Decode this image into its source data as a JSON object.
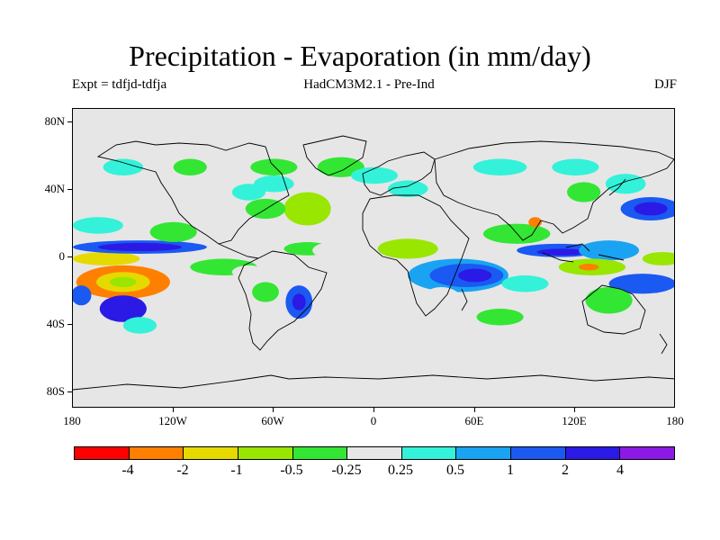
{
  "title": "Precipitation - Evaporation (in mm/day)",
  "subtitle_left": "Expt = tdfjd-tdfja",
  "subtitle_center": "HadCM3M2.1 - Pre-Ind",
  "subtitle_right": "DJF",
  "map": {
    "projection": "equirectangular",
    "lon_range": [
      -180,
      180
    ],
    "lat_range": [
      -90,
      90
    ],
    "background": "#e6e6e6",
    "y_ticks": [
      "80N",
      "40N",
      "0",
      "40S",
      "80S"
    ],
    "x_ticks": [
      "180",
      "120W",
      "60W",
      "0",
      "60E",
      "120E",
      "180"
    ]
  },
  "colorbar": {
    "colors": [
      "#ff0000",
      "#ff7f00",
      "#e6d900",
      "#99e600",
      "#33e633",
      "#e6e6e6",
      "#33f2d9",
      "#1aa3f2",
      "#1a59f2",
      "#2b1ae6",
      "#8c1ae6"
    ],
    "labels": [
      "-4",
      "-2",
      "-1",
      "-0.5",
      "-0.25",
      "0.25",
      "0.5",
      "1",
      "2",
      "4"
    ]
  },
  "chart_data": {
    "type": "heatmap",
    "title": "Precipitation - Evaporation (in mm/day)",
    "variable": "P-E difference",
    "units": "mm/day",
    "season": "DJF",
    "experiment": "tdfjd-tdfja",
    "model": "HadCM3M2.1 - Pre-Ind",
    "levels": [
      -4,
      -2,
      -1,
      -0.5,
      -0.25,
      0.25,
      0.5,
      1,
      2,
      4
    ],
    "blobs": [
      {
        "lon": -150,
        "lat": -14,
        "rlon": 28,
        "rlat": 10,
        "level": 1
      },
      {
        "lon": -150,
        "lat": -14,
        "rlon": 16,
        "rlat": 6,
        "level": 2
      },
      {
        "lon": -150,
        "lat": -14,
        "rlon": 8,
        "rlat": 3,
        "level": 3
      },
      {
        "lon": -160,
        "lat": 0,
        "rlon": 20,
        "rlat": 4,
        "level": 2
      },
      {
        "lon": -140,
        "lat": 7,
        "rlon": 40,
        "rlat": 4,
        "level": 8
      },
      {
        "lon": -140,
        "lat": 7,
        "rlon": 25,
        "rlat": 2.5,
        "level": 9
      },
      {
        "lon": -165,
        "lat": 20,
        "rlon": 15,
        "rlat": 5,
        "level": 6
      },
      {
        "lon": -120,
        "lat": 16,
        "rlon": 14,
        "rlat": 6,
        "level": 4
      },
      {
        "lon": -150,
        "lat": -30,
        "rlon": 14,
        "rlat": 8,
        "level": 9
      },
      {
        "lon": -175,
        "lat": -22,
        "rlon": 6,
        "rlat": 6,
        "level": 8
      },
      {
        "lon": -140,
        "lat": -40,
        "rlon": 10,
        "rlat": 5,
        "level": 6
      },
      {
        "lon": -90,
        "lat": -5,
        "rlon": 20,
        "rlat": 5,
        "level": 4
      },
      {
        "lon": -75,
        "lat": -8,
        "rlon": 10,
        "rlat": 4,
        "level": 5
      },
      {
        "lon": -65,
        "lat": -20,
        "rlon": 8,
        "rlat": 6,
        "level": 4
      },
      {
        "lon": -45,
        "lat": -26,
        "rlon": 8,
        "rlat": 10,
        "level": 8
      },
      {
        "lon": -45,
        "lat": -26,
        "rlon": 4,
        "rlat": 5,
        "level": 9
      },
      {
        "lon": -40,
        "lat": 6,
        "rlon": 14,
        "rlat": 4,
        "level": 4
      },
      {
        "lon": -25,
        "lat": 5,
        "rlon": 12,
        "rlat": 5,
        "level": 5
      },
      {
        "lon": -40,
        "lat": 30,
        "rlon": 14,
        "rlat": 10,
        "level": 3
      },
      {
        "lon": -65,
        "lat": 30,
        "rlon": 12,
        "rlat": 6,
        "level": 4
      },
      {
        "lon": -75,
        "lat": 40,
        "rlon": 10,
        "rlat": 5,
        "level": 6
      },
      {
        "lon": -60,
        "lat": 45,
        "rlon": 12,
        "rlat": 5,
        "level": 6
      },
      {
        "lon": -60,
        "lat": 55,
        "rlon": 14,
        "rlat": 5,
        "level": 4
      },
      {
        "lon": -20,
        "lat": 55,
        "rlon": 14,
        "rlat": 6,
        "level": 4
      },
      {
        "lon": -150,
        "lat": 55,
        "rlon": 12,
        "rlat": 5,
        "level": 6
      },
      {
        "lon": -110,
        "lat": 55,
        "rlon": 10,
        "rlat": 5,
        "level": 4
      },
      {
        "lon": 0,
        "lat": 50,
        "rlon": 14,
        "rlat": 5,
        "level": 6
      },
      {
        "lon": 20,
        "lat": 42,
        "rlon": 12,
        "rlat": 5,
        "level": 6
      },
      {
        "lon": 20,
        "lat": 6,
        "rlon": 18,
        "rlat": 6,
        "level": 3
      },
      {
        "lon": 50,
        "lat": -10,
        "rlon": 30,
        "rlat": 10,
        "level": 7
      },
      {
        "lon": 55,
        "lat": -10,
        "rlon": 22,
        "rlat": 7,
        "level": 8
      },
      {
        "lon": 60,
        "lat": -10,
        "rlon": 10,
        "rlat": 4,
        "level": 9
      },
      {
        "lon": 40,
        "lat": -25,
        "rlon": 12,
        "rlat": 8,
        "level": 5
      },
      {
        "lon": 75,
        "lat": -35,
        "rlon": 14,
        "rlat": 5,
        "level": 4
      },
      {
        "lon": 90,
        "lat": -15,
        "rlon": 14,
        "rlat": 5,
        "level": 6
      },
      {
        "lon": 85,
        "lat": 15,
        "rlon": 20,
        "rlat": 6,
        "level": 4
      },
      {
        "lon": 110,
        "lat": 5,
        "rlon": 25,
        "rlat": 4,
        "level": 8
      },
      {
        "lon": 112,
        "lat": 4,
        "rlon": 15,
        "rlat": 2,
        "level": 9
      },
      {
        "lon": 140,
        "lat": 5,
        "rlon": 18,
        "rlat": 6,
        "level": 7
      },
      {
        "lon": 130,
        "lat": -5,
        "rlon": 20,
        "rlat": 5,
        "level": 3
      },
      {
        "lon": 128,
        "lat": -5,
        "rlon": 6,
        "rlat": 2,
        "level": 1
      },
      {
        "lon": 160,
        "lat": -15,
        "rlon": 20,
        "rlat": 6,
        "level": 8
      },
      {
        "lon": 140,
        "lat": -25,
        "rlon": 14,
        "rlat": 8,
        "level": 4
      },
      {
        "lon": 165,
        "lat": 30,
        "rlon": 18,
        "rlat": 7,
        "level": 8
      },
      {
        "lon": 165,
        "lat": 30,
        "rlon": 10,
        "rlat": 4,
        "level": 9
      },
      {
        "lon": 150,
        "lat": 45,
        "rlon": 12,
        "rlat": 6,
        "level": 6
      },
      {
        "lon": 125,
        "lat": 40,
        "rlon": 10,
        "rlat": 6,
        "level": 4
      },
      {
        "lon": 172,
        "lat": 0,
        "rlon": 12,
        "rlat": 4,
        "level": 3
      },
      {
        "lon": 75,
        "lat": 55,
        "rlon": 16,
        "rlat": 5,
        "level": 6
      },
      {
        "lon": 120,
        "lat": 55,
        "rlon": 14,
        "rlat": 5,
        "level": 6
      },
      {
        "lon": 96,
        "lat": 22,
        "rlon": 4,
        "rlat": 3,
        "level": 1
      }
    ]
  }
}
